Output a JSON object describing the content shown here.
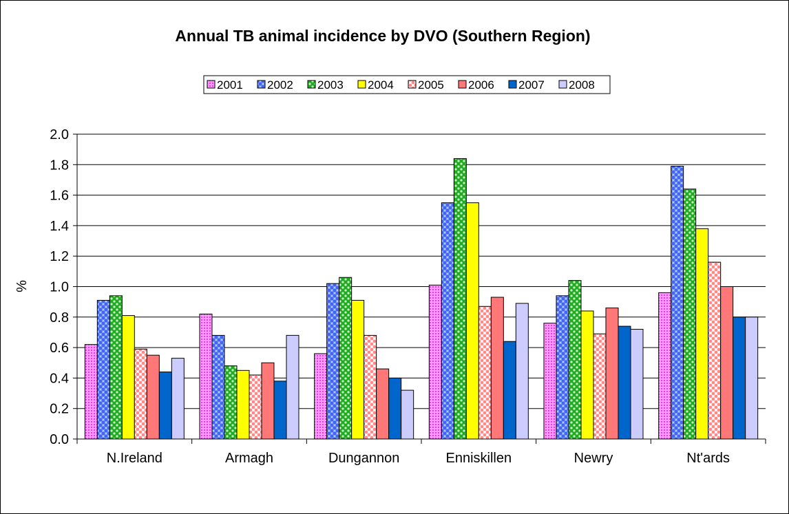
{
  "chart_data": {
    "type": "bar",
    "title": "Annual TB animal incidence by DVO (Southern Region)",
    "xlabel": "",
    "ylabel": "%",
    "ylim": [
      0,
      2.0
    ],
    "ytick_step": 0.2,
    "ytick_labels": [
      "0.0",
      "0.2",
      "0.4",
      "0.6",
      "0.8",
      "1.0",
      "1.2",
      "1.4",
      "1.6",
      "1.8",
      "2.0"
    ],
    "grid": true,
    "legend_position": "top",
    "categories": [
      "N.Ireland",
      "Armagh",
      "Dungannon",
      "Enniskillen",
      "Newry",
      "Nt'ards"
    ],
    "series": [
      {
        "name": "2001",
        "color": "#ff66ff",
        "pattern": "dots",
        "values": [
          0.62,
          0.82,
          0.56,
          1.01,
          0.76,
          0.96
        ]
      },
      {
        "name": "2002",
        "color": "#6688ff",
        "pattern": "checker",
        "values": [
          0.91,
          0.68,
          1.02,
          1.55,
          0.94,
          1.79
        ]
      },
      {
        "name": "2003",
        "color": "#33aa33",
        "pattern": "bigdots",
        "values": [
          0.94,
          0.48,
          1.06,
          1.84,
          1.04,
          1.64
        ]
      },
      {
        "name": "2004",
        "color": "#ffff00",
        "pattern": "solid",
        "values": [
          0.81,
          0.45,
          0.91,
          1.55,
          0.84,
          1.38
        ]
      },
      {
        "name": "2005",
        "color": "#ff9999",
        "pattern": "lattice",
        "values": [
          0.59,
          0.42,
          0.68,
          0.87,
          0.69,
          1.16
        ]
      },
      {
        "name": "2006",
        "color": "#ff7777",
        "pattern": "solid",
        "values": [
          0.55,
          0.5,
          0.46,
          0.93,
          0.86,
          1.0
        ]
      },
      {
        "name": "2007",
        "color": "#0066cc",
        "pattern": "solid",
        "values": [
          0.44,
          0.38,
          0.4,
          0.64,
          0.74,
          0.8
        ]
      },
      {
        "name": "2008",
        "color": "#ccccff",
        "pattern": "solid",
        "values": [
          0.53,
          0.68,
          0.32,
          0.89,
          0.72,
          0.8
        ]
      }
    ]
  }
}
